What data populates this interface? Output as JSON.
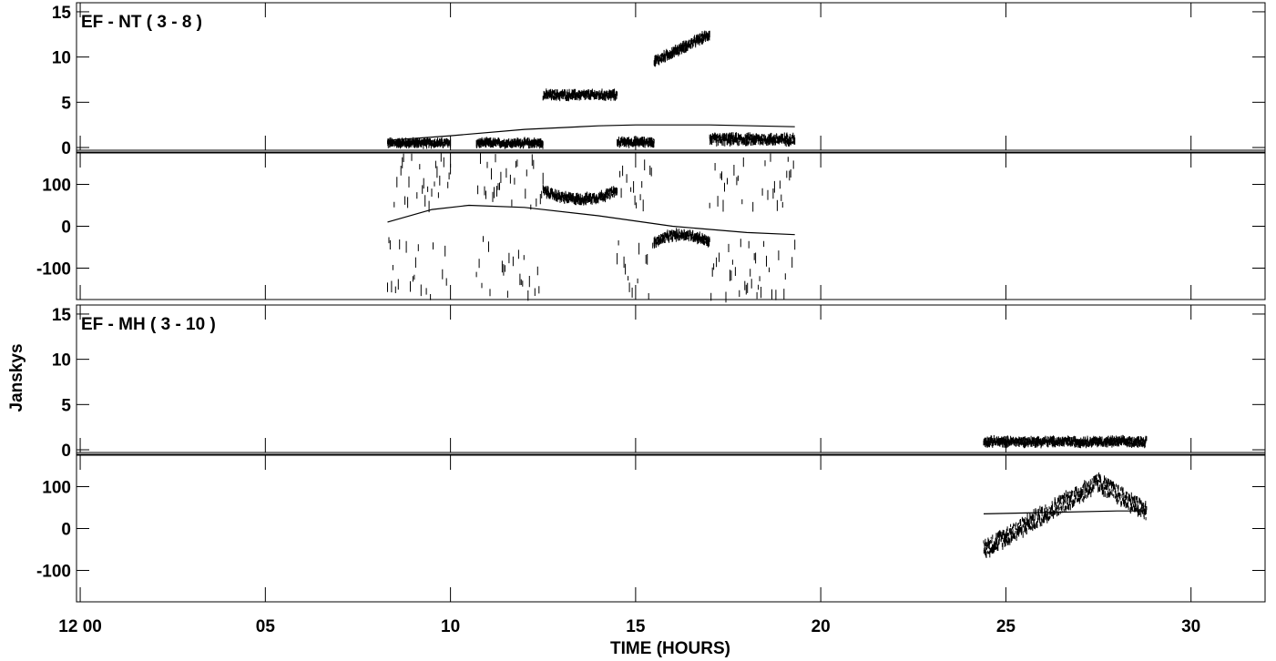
{
  "chart_data": {
    "type": "scatter",
    "xlabel": "TIME (HOURS)",
    "ylabel": "Janskys",
    "xlim": [
      -0.1,
      32.0
    ],
    "x_ticks": [
      {
        "value": 0,
        "label": "12 00"
      },
      {
        "value": 5,
        "label": "05"
      },
      {
        "value": 10,
        "label": "10"
      },
      {
        "value": 15,
        "label": "15"
      },
      {
        "value": 20,
        "label": "20"
      },
      {
        "value": 25,
        "label": "25"
      },
      {
        "value": 30,
        "label": "30"
      }
    ],
    "panels": [
      {
        "id": "ef-nt-amplitude",
        "baseline": "EF - NT ( 3 - 8 )",
        "quantity": "amplitude",
        "ylim": [
          -0.3,
          16
        ],
        "y_ticks": [
          0,
          5,
          10,
          15
        ],
        "segments": [
          {
            "x_start": 8.3,
            "x_end": 10.0,
            "center": 0.5,
            "spread": 0.6
          },
          {
            "x_start": 10.7,
            "x_end": 12.5,
            "center": 0.5,
            "spread": 0.6
          },
          {
            "x_start": 12.5,
            "x_end": 14.5,
            "center": 5.8,
            "spread": 0.7
          },
          {
            "x_start": 14.5,
            "x_end": 15.5,
            "center": 0.6,
            "spread": 0.6
          },
          {
            "x_start": 15.5,
            "x_end": 17.0,
            "center": 9.5,
            "center_end": 12.5,
            "spread": 0.8
          },
          {
            "x_start": 17.0,
            "x_end": 19.3,
            "center": 0.9,
            "spread": 0.9
          }
        ],
        "model": {
          "x": [
            8.3,
            10,
            12,
            14,
            15,
            17,
            19.3
          ],
          "y": [
            0.8,
            1.3,
            2.0,
            2.4,
            2.5,
            2.5,
            2.3
          ]
        }
      },
      {
        "id": "ef-nt-phase",
        "quantity": "phase",
        "ylim": [
          -175,
          175
        ],
        "y_ticks": [
          -100,
          0,
          100
        ],
        "segments": [
          {
            "x_start": 8.3,
            "x_end": 10.0,
            "center": 0,
            "spread": 340,
            "scatter": true
          },
          {
            "x_start": 10.7,
            "x_end": 12.5,
            "center": 0,
            "spread": 340,
            "scatter": true
          },
          {
            "x_start": 12.5,
            "x_end": 14.5,
            "center": 65,
            "spread": 18,
            "bowl": 20
          },
          {
            "x_start": 14.5,
            "x_end": 15.5,
            "center": 0,
            "spread": 340,
            "scatter": true
          },
          {
            "x_start": 15.5,
            "x_end": 17.0,
            "center": -20,
            "spread": 18,
            "bowl": -20
          },
          {
            "x_start": 17.0,
            "x_end": 19.3,
            "center": 0,
            "spread": 340,
            "scatter": true
          }
        ],
        "model": {
          "x": [
            8.3,
            9.5,
            10.5,
            12,
            14,
            16,
            18,
            19.3
          ],
          "y": [
            10,
            40,
            50,
            45,
            25,
            0,
            -15,
            -20
          ]
        }
      },
      {
        "id": "ef-mh-amplitude",
        "baseline": "EF - MH ( 3 - 10 )",
        "quantity": "amplitude",
        "ylim": [
          -0.3,
          16
        ],
        "y_ticks": [
          0,
          5,
          10,
          15
        ],
        "segments": [
          {
            "x_start": 24.4,
            "x_end": 28.8,
            "center": 0.9,
            "spread": 0.7
          }
        ],
        "model": null
      },
      {
        "id": "ef-mh-phase",
        "quantity": "phase",
        "ylim": [
          -175,
          175
        ],
        "y_ticks": [
          -100,
          0,
          100
        ],
        "segments": [
          {
            "x_start": 24.4,
            "x_end": 28.8,
            "center": -50,
            "center_end": 40,
            "peak_at": 27.5,
            "peak": 110,
            "spread": 40
          }
        ],
        "model": {
          "x": [
            24.4,
            26,
            28,
            28.8
          ],
          "y": [
            35,
            38,
            42,
            42
          ]
        }
      }
    ]
  }
}
